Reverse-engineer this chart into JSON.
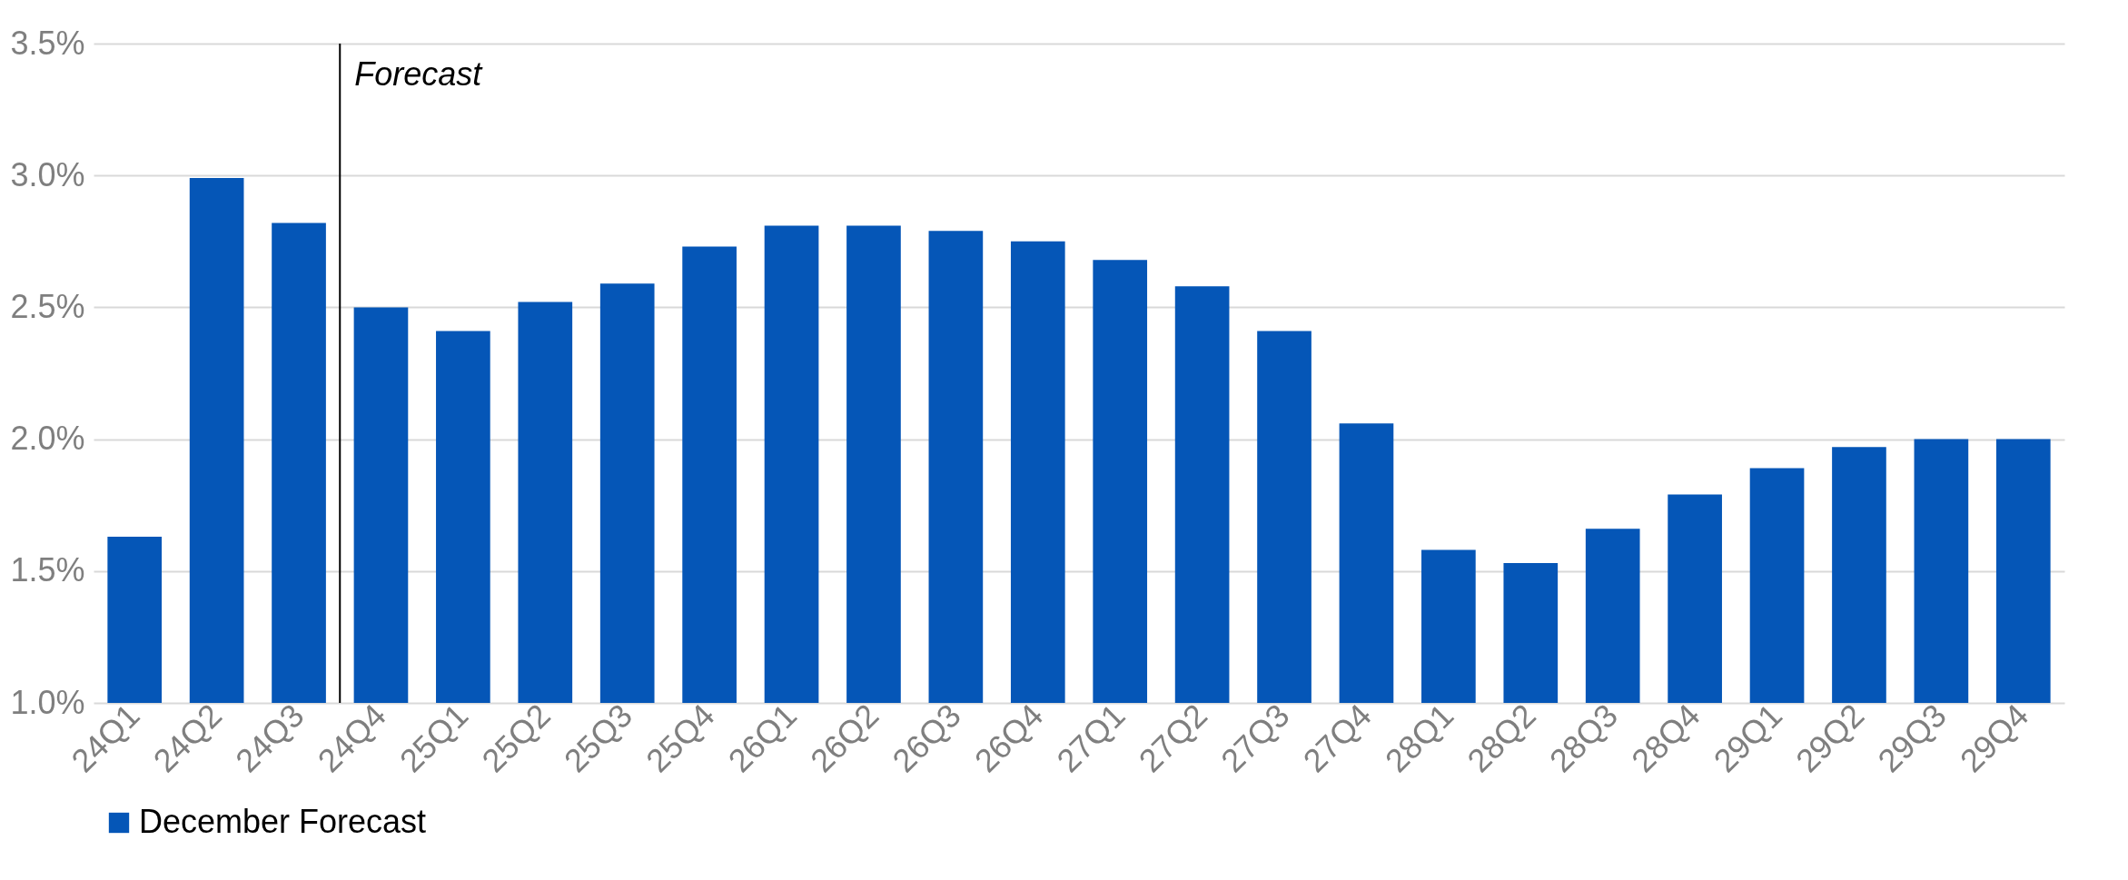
{
  "chart_data": {
    "type": "bar",
    "categories": [
      "24Q1",
      "24Q2",
      "24Q3",
      "24Q4",
      "25Q1",
      "25Q2",
      "25Q3",
      "25Q4",
      "26Q1",
      "26Q2",
      "26Q3",
      "26Q4",
      "27Q1",
      "27Q2",
      "27Q3",
      "27Q4",
      "28Q1",
      "28Q2",
      "28Q3",
      "28Q4",
      "29Q1",
      "29Q2",
      "29Q3",
      "29Q4"
    ],
    "series": [
      {
        "name": "December Forecast",
        "color": "#0556b7",
        "values": [
          1.63,
          2.99,
          2.82,
          2.5,
          2.41,
          2.52,
          2.59,
          2.73,
          2.81,
          2.81,
          2.79,
          2.75,
          2.68,
          2.58,
          2.41,
          2.06,
          1.58,
          1.53,
          1.66,
          1.79,
          1.89,
          1.97,
          2.0,
          2.0
        ]
      }
    ],
    "ylim": [
      1.0,
      3.5
    ],
    "yticks": [
      {
        "value": 1.0,
        "label": "1.0%"
      },
      {
        "value": 1.5,
        "label": "1.5%"
      },
      {
        "value": 2.0,
        "label": "2.0%"
      },
      {
        "value": 2.5,
        "label": "2.5%"
      },
      {
        "value": 3.0,
        "label": "3.0%"
      },
      {
        "value": 3.5,
        "label": "3.5%"
      }
    ],
    "ref_lines": [
      {
        "axis": "x",
        "value": "24Q4",
        "label": "Forecast",
        "color": "#000000"
      }
    ],
    "grid": "y",
    "legend": "bottom"
  }
}
